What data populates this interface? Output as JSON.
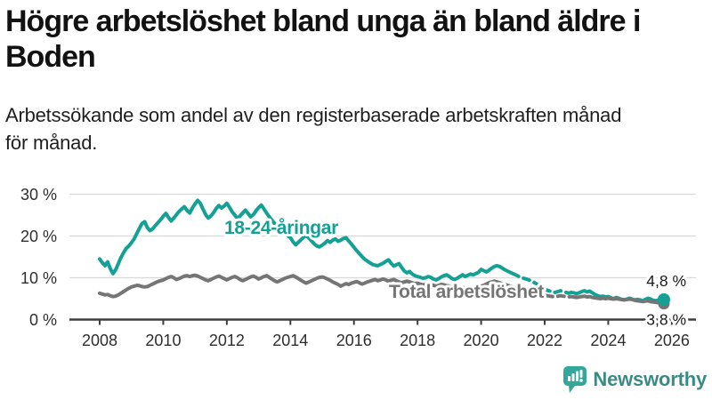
{
  "header": {
    "title": "Högre arbetslöshet bland unga än bland äldre i Boden",
    "title_lines": [
      "Högre arbetslöshet bland unga än bland äldre i",
      "Boden"
    ],
    "subtitle": "Arbetssökande som andel av den registerbaserade arbetskraften månad för månad.",
    "subtitle_lines": [
      "Arbetssökande som andel av den registerbaserade arbetskraften månad",
      "för månad."
    ]
  },
  "chart_data": {
    "type": "line",
    "title": "Högre arbetslöshet bland unga än bland äldre i Boden",
    "xlabel": "",
    "ylabel": "",
    "x_unit": "month",
    "x_start": "2008-01",
    "x_end": "2025-10",
    "points_per_year": 12,
    "ylim": [
      0,
      30
    ],
    "grid": true,
    "legend_position": "inline-labels",
    "x_ticks": [
      2008,
      2010,
      2012,
      2014,
      2016,
      2018,
      2020,
      2022,
      2024,
      2026
    ],
    "y_ticks": [
      {
        "value": 0,
        "label": "0 %"
      },
      {
        "value": 10,
        "label": "10 %"
      },
      {
        "value": 20,
        "label": "20 %"
      },
      {
        "value": 30,
        "label": "30 %"
      }
    ],
    "dashed_segment": {
      "start_index": 156,
      "end_index": 179
    },
    "series": [
      {
        "name": "18-24-åringar",
        "color": "#13A095",
        "end_label": "4,8 %",
        "end_value": 4.8,
        "values": [
          14.5,
          13.6,
          12.9,
          13.8,
          12.2,
          11.0,
          11.9,
          13.3,
          14.8,
          16.0,
          17.0,
          17.6,
          18.4,
          19.3,
          20.6,
          21.8,
          23.0,
          23.4,
          22.0,
          21.3,
          21.7,
          22.5,
          23.2,
          23.9,
          24.7,
          25.4,
          24.4,
          23.6,
          24.3,
          25.1,
          25.9,
          26.5,
          27.0,
          26.1,
          25.5,
          26.7,
          27.7,
          28.5,
          27.8,
          26.4,
          25.1,
          24.3,
          24.8,
          25.6,
          26.6,
          27.3,
          26.7,
          27.2,
          27.8,
          26.9,
          25.8,
          25.0,
          24.2,
          24.8,
          25.5,
          26.2,
          25.4,
          24.6,
          25.1,
          26.0,
          26.8,
          27.4,
          26.5,
          25.5,
          24.6,
          23.8,
          23.0,
          22.3,
          21.7,
          21.1,
          20.6,
          20.1,
          19.6,
          18.6,
          17.9,
          18.5,
          19.1,
          19.7,
          20.1,
          19.5,
          18.8,
          18.1,
          17.6,
          17.4,
          17.8,
          18.3,
          18.9,
          18.5,
          19.0,
          19.3,
          18.7,
          19.0,
          19.4,
          19.6,
          18.8,
          18.1,
          17.3,
          16.5,
          15.8,
          15.1,
          14.5,
          14.0,
          13.6,
          13.2,
          13.0,
          12.9,
          13.2,
          13.5,
          13.9,
          14.3,
          13.5,
          12.8,
          13.1,
          13.4,
          12.5,
          11.6,
          11.2,
          11.5,
          10.9,
          10.5,
          10.3,
          10.1,
          9.9,
          10.0,
          10.3,
          10.1,
          9.7,
          9.5,
          9.8,
          10.2,
          10.5,
          10.7,
          10.3,
          9.8,
          9.6,
          9.9,
          10.3,
          10.7,
          10.3,
          10.6,
          10.9,
          10.7,
          11.0,
          11.3,
          12.0,
          11.7,
          11.4,
          11.8,
          12.3,
          12.7,
          12.9,
          12.7,
          12.3,
          11.9,
          11.6,
          11.3,
          11.0,
          10.7,
          10.4,
          10.1,
          9.9,
          9.7,
          9.5,
          9.2,
          8.9,
          8.5,
          8.1,
          7.7,
          7.3,
          7.0,
          6.8,
          6.6,
          6.5,
          6.7,
          6.9,
          6.7,
          6.5,
          6.3,
          6.5,
          6.4,
          6.2,
          6.4,
          6.7,
          6.9,
          6.6,
          6.8,
          6.4,
          6.0,
          5.7,
          5.5,
          5.6,
          5.4,
          5.5,
          5.2,
          5.0,
          5.3,
          5.1,
          4.8,
          4.7,
          4.9,
          5.1,
          4.9,
          4.7,
          4.8,
          4.7,
          4.5,
          4.8,
          5.1,
          4.9,
          4.6,
          4.5,
          4.7,
          4.9,
          4.8
        ]
      },
      {
        "name": "Total arbetslöshet",
        "color": "#757575",
        "end_label": "3,8 %",
        "end_value": 3.8,
        "values": [
          6.3,
          6.1,
          5.9,
          6.0,
          5.7,
          5.5,
          5.6,
          5.9,
          6.3,
          6.7,
          7.1,
          7.5,
          7.8,
          8.0,
          8.2,
          8.1,
          7.9,
          7.8,
          7.9,
          8.2,
          8.5,
          8.8,
          9.1,
          9.3,
          9.5,
          9.8,
          10.1,
          10.3,
          10.0,
          9.6,
          9.8,
          10.1,
          10.4,
          10.5,
          10.3,
          10.5,
          10.6,
          10.4,
          10.1,
          9.8,
          9.5,
          9.3,
          9.6,
          9.9,
          10.2,
          10.4,
          10.1,
          9.8,
          9.5,
          9.8,
          10.1,
          10.3,
          10.0,
          9.6,
          9.3,
          9.6,
          9.9,
          10.2,
          10.4,
          10.1,
          9.7,
          10.0,
          10.3,
          10.5,
          10.1,
          9.7,
          9.3,
          9.0,
          9.3,
          9.6,
          9.9,
          10.1,
          10.3,
          10.5,
          10.2,
          9.8,
          9.4,
          9.0,
          8.7,
          9.0,
          9.3,
          9.6,
          9.9,
          10.1,
          10.2,
          10.0,
          9.7,
          9.4,
          9.0,
          8.7,
          8.4,
          8.0,
          8.3,
          8.6,
          8.4,
          8.7,
          8.9,
          9.1,
          8.8,
          8.5,
          8.7,
          9.0,
          9.2,
          9.4,
          9.6,
          9.3,
          9.5,
          9.7,
          9.5,
          9.2,
          9.4,
          9.6,
          9.3,
          9.0,
          8.8,
          9.0,
          9.2,
          9.0,
          8.8,
          8.6,
          8.7,
          8.5,
          8.3,
          8.4,
          8.6,
          8.4,
          8.2,
          8.0,
          8.2,
          8.4,
          8.3,
          8.1,
          8.0,
          7.8,
          7.6,
          7.7,
          7.9,
          7.7,
          7.5,
          7.3,
          7.4,
          7.6,
          7.5,
          7.7,
          8.0,
          8.2,
          8.5,
          8.8,
          9.0,
          9.2,
          9.0,
          8.8,
          8.6,
          8.4,
          8.2,
          8.0,
          7.8,
          7.6,
          7.4,
          7.2,
          7.0,
          6.8,
          6.6,
          6.4,
          6.2,
          6.1,
          6.0,
          5.9,
          5.8,
          5.7,
          5.6,
          5.5,
          5.5,
          5.6,
          5.7,
          5.6,
          5.5,
          5.4,
          5.5,
          5.4,
          5.3,
          5.4,
          5.5,
          5.6,
          5.4,
          5.5,
          5.3,
          5.2,
          5.1,
          5.0,
          5.1,
          5.0,
          5.1,
          5.0,
          4.9,
          5.0,
          4.9,
          4.8,
          4.7,
          4.8,
          4.9,
          4.8,
          4.6,
          4.5,
          4.4,
          4.3,
          4.4,
          4.5,
          4.3,
          4.2,
          4.1,
          4.0,
          3.9,
          3.8
        ]
      }
    ],
    "style": {
      "grid_color": "#d9d9d9",
      "axis_color": "#3d3d3d",
      "tick_color": "#2e2e2e",
      "value_label_color": "#1a1a1a",
      "halo_color": "#ffffff"
    }
  },
  "footer": {
    "brand": "Newsworthy",
    "brand_color": "#3B8A85",
    "icon_color": "#34A79B"
  }
}
